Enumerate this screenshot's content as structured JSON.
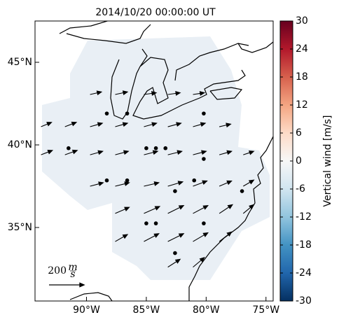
{
  "chart_data": {
    "type": "quiver",
    "title": "2014/10/20 00:00:00 UT",
    "xlim": [
      -94.3,
      -74.4
    ],
    "ylim": [
      30.55,
      47.5
    ],
    "xticks": [
      {
        "value": -90,
        "label": "90°W"
      },
      {
        "value": -85,
        "label": "85°W"
      },
      {
        "value": -80,
        "label": "80°W"
      },
      {
        "value": -75,
        "label": "75°W"
      }
    ],
    "yticks": [
      {
        "value": 35,
        "label": "35°N"
      },
      {
        "value": 40,
        "label": "40°N"
      },
      {
        "value": 45,
        "label": "45°N"
      }
    ],
    "vectors": {
      "lon": [
        -89.7,
        -87.6,
        -85.2,
        -83.2,
        -81.1,
        -93.8,
        -91.8,
        -89.7,
        -87.6,
        -85.2,
        -83.2,
        -81.1,
        -78.9,
        -93.8,
        -91.8,
        -89.7,
        -87.6,
        -85.2,
        -83.2,
        -81.1,
        -78.9,
        -76.9,
        -89.7,
        -87.6,
        -85.2,
        -83.2,
        -81.1,
        -78.9,
        -76.9,
        -87.6,
        -85.2,
        -83.2,
        -81.1,
        -78.9,
        -76.9,
        -87.6,
        -85.2,
        -83.2,
        -81.1,
        -78.9,
        -83.2,
        -81.1
      ],
      "lat": [
        43.05,
        43.05,
        43.05,
        43.05,
        43.05,
        41.1,
        41.1,
        41.1,
        41.1,
        41.1,
        41.1,
        41.1,
        41.1,
        39.4,
        39.4,
        39.4,
        39.4,
        39.4,
        39.4,
        39.4,
        39.4,
        39.4,
        37.5,
        37.5,
        37.5,
        37.5,
        37.5,
        37.5,
        37.5,
        35.85,
        35.85,
        35.85,
        35.85,
        35.85,
        35.85,
        34.15,
        34.15,
        34.15,
        34.15,
        34.15,
        32.6,
        32.6
      ],
      "u": [
        65,
        70,
        70,
        70,
        65,
        60,
        65,
        70,
        70,
        72,
        75,
        70,
        65,
        65,
        70,
        72,
        75,
        78,
        80,
        75,
        70,
        60,
        75,
        80,
        85,
        85,
        80,
        70,
        60,
        80,
        90,
        90,
        85,
        75,
        60,
        70,
        85,
        90,
        85,
        70,
        70,
        65
      ],
      "v": [
        15,
        15,
        10,
        10,
        10,
        25,
        25,
        20,
        20,
        20,
        20,
        20,
        15,
        25,
        25,
        20,
        20,
        20,
        20,
        20,
        20,
        20,
        20,
        20,
        20,
        25,
        30,
        30,
        35,
        35,
        40,
        45,
        45,
        50,
        50,
        40,
        45,
        45,
        50,
        55,
        45,
        55
      ]
    },
    "points": {
      "lon": [
        -88.3,
        -86.6,
        -80.2,
        -91.5,
        -85.0,
        -84.2,
        -83.4,
        -80.2,
        -88.3,
        -86.6,
        -82.6,
        -81.0,
        -77.0,
        -85.0,
        -84.2,
        -80.2,
        -82.6
      ],
      "lat": [
        41.9,
        41.9,
        41.9,
        39.8,
        39.8,
        39.8,
        39.8,
        39.15,
        37.85,
        37.85,
        37.2,
        37.85,
        37.2,
        35.25,
        35.25,
        35.25,
        33.45
      ]
    },
    "key": {
      "value": 200,
      "unit_num": "m",
      "unit_den": "s"
    },
    "colorbar": {
      "label": "Vertical wind [m/s]",
      "lim": [
        -30,
        30
      ],
      "ticks": [
        -30,
        -24,
        -18,
        -12,
        -6,
        0,
        6,
        12,
        18,
        24,
        30
      ],
      "colors": [
        "#053061",
        "#2166ac",
        "#4393c3",
        "#92c5de",
        "#d1e5f0",
        "#f7f7f7",
        "#fddbc7",
        "#f4a582",
        "#d6604d",
        "#b2182b",
        "#67001f"
      ]
    }
  }
}
